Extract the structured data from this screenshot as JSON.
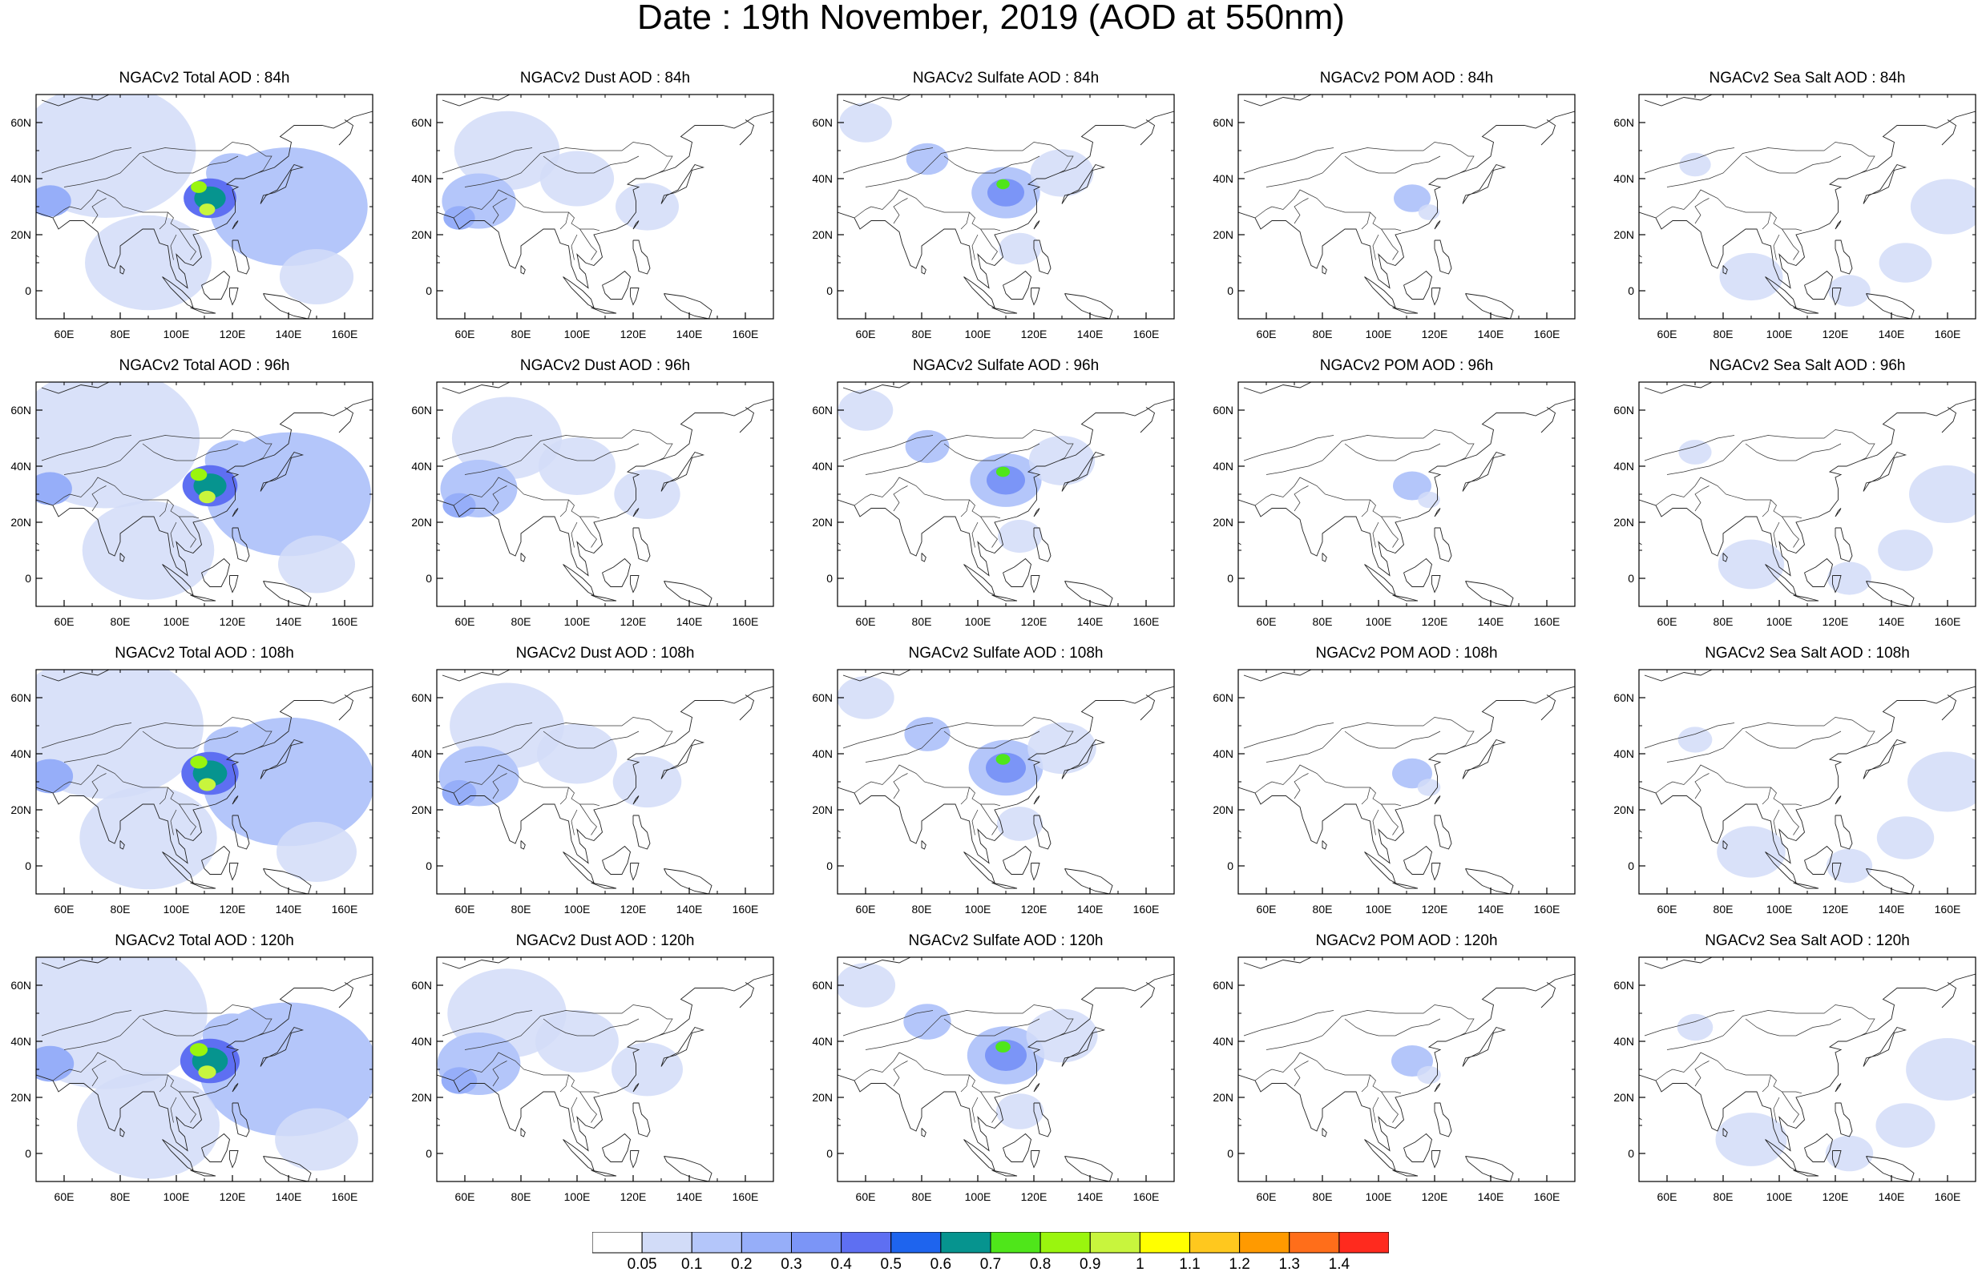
{
  "figure_title": "Date : 19th November, 2019 (AOD at 550nm)",
  "chart_data": {
    "type": "heatmap",
    "map_region": {
      "lon_range": [
        50,
        170
      ],
      "lat_range": [
        -10,
        70
      ]
    },
    "x_ticks": [
      "60E",
      "80E",
      "100E",
      "120E",
      "140E",
      "160E"
    ],
    "y_ticks": [
      "60N",
      "40N",
      "20N",
      "0"
    ],
    "colorbar": {
      "colors": [
        "#ffffff",
        "#d2dcf8",
        "#b4c6fa",
        "#96aef9",
        "#7b95f7",
        "#5e6ff2",
        "#1e64ee",
        "#06948f",
        "#4fe61a",
        "#9af50e",
        "#c8f53d",
        "#ffff00",
        "#ffc81e",
        "#ff9a00",
        "#ff6e1a",
        "#ff2a1e"
      ],
      "labels": [
        "0.05",
        "0.1",
        "0.2",
        "0.3",
        "0.4",
        "0.5",
        "0.6",
        "0.7",
        "0.8",
        "0.9",
        "1",
        "1.1",
        "1.2",
        "1.3",
        "1.4"
      ]
    },
    "rows": [
      {
        "hour": "84h",
        "titles": [
          "NGACv2 Total AOD : 84h",
          "NGACv2 Dust AOD : 84h",
          "NGACv2 Sulfate AOD : 84h",
          "NGACv2 POM AOD : 84h",
          "NGACv2 Sea Salt AOD : 84h"
        ]
      },
      {
        "hour": "96h",
        "titles": [
          "NGACv2 Total AOD : 96h",
          "NGACv2 Dust AOD : 96h",
          "NGACv2 Sulfate AOD : 96h",
          "NGACv2 POM AOD : 96h",
          "NGACv2 Sea Salt AOD : 96h"
        ]
      },
      {
        "hour": "108h",
        "titles": [
          "NGACv2 Total AOD : 108h",
          "NGACv2 Dust AOD : 108h",
          "NGACv2 Sulfate AOD : 108h",
          "NGACv2 POM AOD : 108h",
          "NGACv2 Sea Salt AOD : 108h"
        ]
      },
      {
        "hour": "120h",
        "titles": [
          "NGACv2 Total AOD : 120h",
          "NGACv2 Dust AOD : 120h",
          "NGACv2 Sulfate AOD : 120h",
          "NGACv2 POM AOD : 120h",
          "NGACv2 Sea Salt  AOD : 120h"
        ]
      }
    ],
    "species": [
      {
        "key": "total",
        "fields": [
          {
            "lon": 75,
            "lat": 50,
            "r": 34,
            "level": 1
          },
          {
            "lon": 140,
            "lat": 30,
            "r": 30,
            "level": 2
          },
          {
            "lon": 90,
            "lat": 10,
            "r": 24,
            "level": 1
          },
          {
            "lon": 55,
            "lat": 32,
            "r": 8,
            "level": 3
          },
          {
            "lon": 120,
            "lat": 42,
            "r": 10,
            "level": 2
          },
          {
            "lon": 150,
            "lat": 5,
            "r": 14,
            "level": 1
          },
          {
            "lon": 112,
            "lat": 33,
            "r": 10,
            "level": 5
          },
          {
            "lon": 112,
            "lat": 33,
            "r": 6,
            "level": 7
          },
          {
            "lon": 108,
            "lat": 37,
            "r": 3,
            "level": 9
          },
          {
            "lon": 111,
            "lat": 29,
            "r": 3,
            "level": 10
          }
        ]
      },
      {
        "key": "dust",
        "fields": [
          {
            "lon": 75,
            "lat": 50,
            "r": 20,
            "level": 1
          },
          {
            "lon": 65,
            "lat": 32,
            "r": 14,
            "level": 2
          },
          {
            "lon": 100,
            "lat": 40,
            "r": 14,
            "level": 1
          },
          {
            "lon": 125,
            "lat": 30,
            "r": 12,
            "level": 1
          },
          {
            "lon": 58,
            "lat": 26,
            "r": 6,
            "level": 3
          }
        ]
      },
      {
        "key": "sulfate",
        "fields": [
          {
            "lon": 60,
            "lat": 60,
            "r": 10,
            "level": 1
          },
          {
            "lon": 82,
            "lat": 47,
            "r": 8,
            "level": 2
          },
          {
            "lon": 110,
            "lat": 35,
            "r": 13,
            "level": 2
          },
          {
            "lon": 110,
            "lat": 35,
            "r": 7,
            "level": 4
          },
          {
            "lon": 109,
            "lat": 38,
            "r": 2.5,
            "level": 8
          },
          {
            "lon": 130,
            "lat": 42,
            "r": 12,
            "level": 1
          },
          {
            "lon": 115,
            "lat": 15,
            "r": 8,
            "level": 1
          }
        ]
      },
      {
        "key": "pom",
        "fields": [
          {
            "lon": 112,
            "lat": 33,
            "r": 7,
            "level": 2
          },
          {
            "lon": 118,
            "lat": 28,
            "r": 4,
            "level": 1
          }
        ]
      },
      {
        "key": "seasalt",
        "fields": [
          {
            "lon": 160,
            "lat": 30,
            "r": 14,
            "level": 1
          },
          {
            "lon": 145,
            "lat": 10,
            "r": 10,
            "level": 1
          },
          {
            "lon": 90,
            "lat": 5,
            "r": 12,
            "level": 1
          },
          {
            "lon": 70,
            "lat": 45,
            "r": 6,
            "level": 1
          },
          {
            "lon": 125,
            "lat": 0,
            "r": 8,
            "level": 1
          }
        ]
      }
    ]
  }
}
